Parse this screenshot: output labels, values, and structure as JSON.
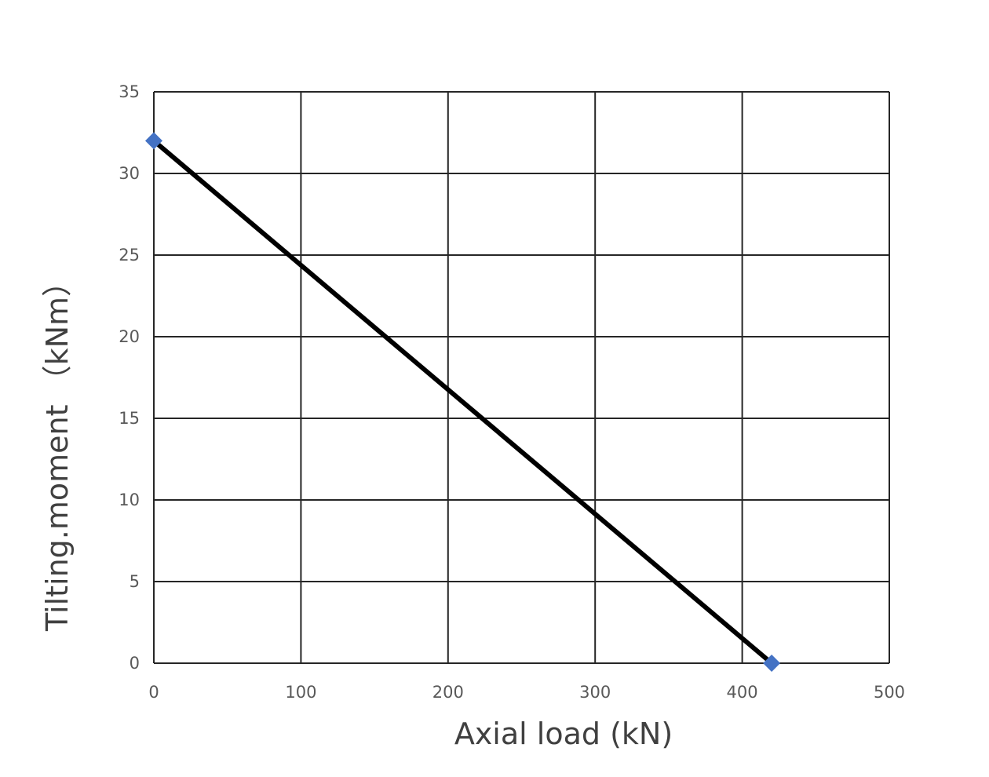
{
  "chart_data": {
    "type": "line",
    "title": "",
    "xlabel": "Axial load (kN)",
    "ylabel": "Tilting.moment （kNm）",
    "xlim": [
      0,
      500
    ],
    "ylim": [
      0,
      35
    ],
    "x_ticks": [
      0,
      100,
      200,
      300,
      400,
      500
    ],
    "y_ticks": [
      0,
      5,
      10,
      15,
      20,
      25,
      30,
      35
    ],
    "x_tick_labels": [
      "0",
      "100",
      "200",
      "300",
      "400",
      "500"
    ],
    "y_tick_labels": [
      "0",
      "5",
      "10",
      "15",
      "20",
      "25",
      "30",
      "35"
    ],
    "grid": true,
    "legend": "none",
    "series": [
      {
        "x": [
          0,
          420
        ],
        "y": [
          32,
          0
        ],
        "line_color": "#000000",
        "marker": "diamond",
        "marker_color": "#4472c4"
      }
    ]
  }
}
